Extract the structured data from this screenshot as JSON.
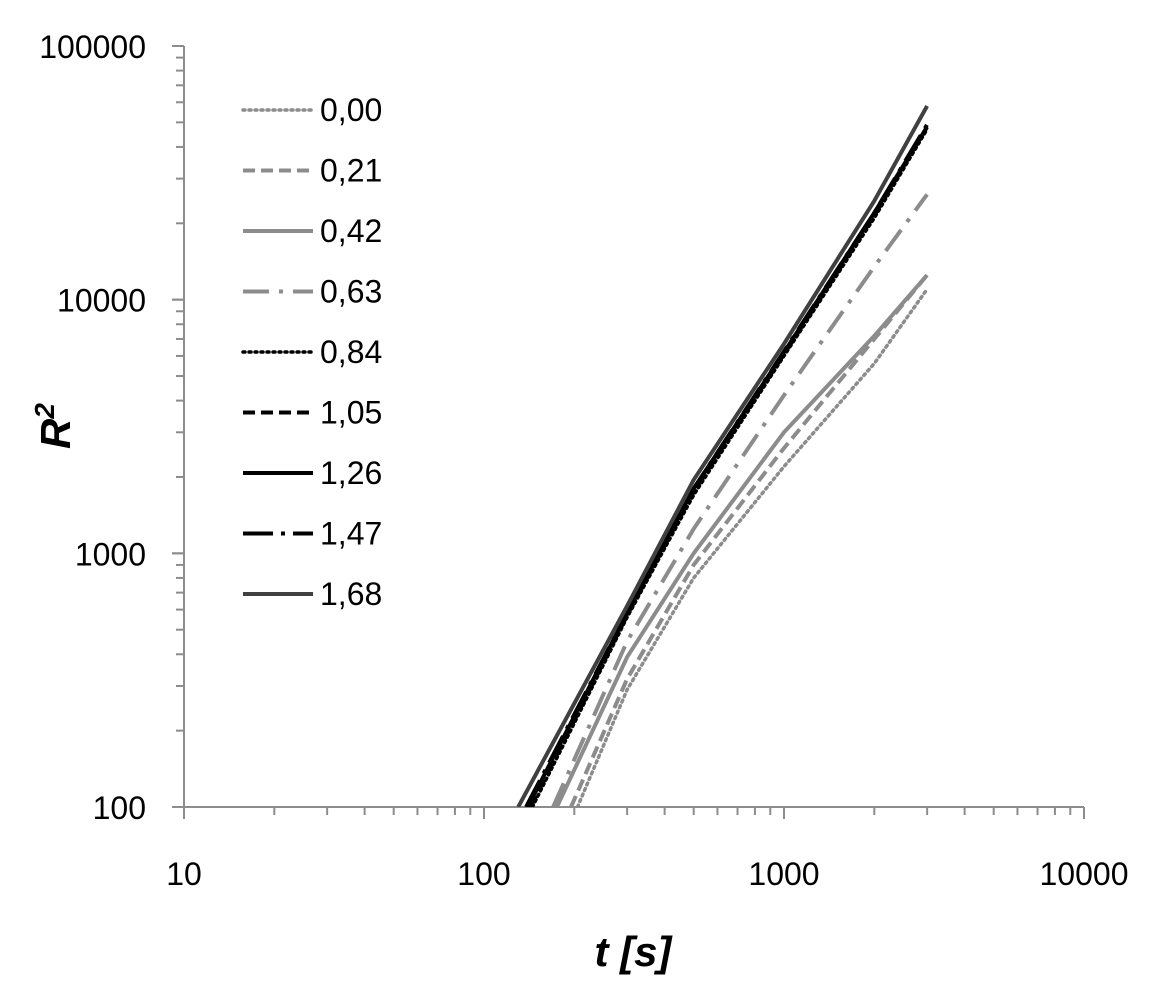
{
  "chart_data": {
    "type": "line",
    "x_scale": "log",
    "y_scale": "log",
    "xlim": [
      10,
      10000
    ],
    "ylim": [
      100,
      100000
    ],
    "xlabel": "t [s]",
    "ylabel": "R",
    "ylabel_superscript": "2",
    "x_ticks": [
      {
        "value": 10,
        "label": "10"
      },
      {
        "value": 100,
        "label": "100"
      },
      {
        "value": 1000,
        "label": "1000"
      },
      {
        "value": 10000,
        "label": "10000"
      }
    ],
    "y_ticks": [
      {
        "value": 100,
        "label": "100"
      },
      {
        "value": 1000,
        "label": "1000"
      },
      {
        "value": 10000,
        "label": "10000"
      },
      {
        "value": 100000,
        "label": "100000"
      }
    ],
    "grid": false,
    "legend_position": "top-left",
    "series": [
      {
        "name": "0,00",
        "color": "#8c8c8c",
        "style": "dotted",
        "points": [
          [
            205,
            100
          ],
          [
            300,
            290
          ],
          [
            500,
            800
          ],
          [
            1000,
            2200
          ],
          [
            2000,
            5600
          ],
          [
            3000,
            11000
          ]
        ]
      },
      {
        "name": "0,21",
        "color": "#8c8c8c",
        "style": "dashed",
        "points": [
          [
            195,
            100
          ],
          [
            300,
            320
          ],
          [
            500,
            900
          ],
          [
            1000,
            2600
          ],
          [
            2000,
            7000
          ],
          [
            3000,
            12500
          ]
        ]
      },
      {
        "name": "0,42",
        "color": "#8c8c8c",
        "style": "solid",
        "points": [
          [
            175,
            100
          ],
          [
            300,
            390
          ],
          [
            500,
            1000
          ],
          [
            1000,
            3000
          ],
          [
            2000,
            7200
          ],
          [
            3000,
            12500
          ]
        ]
      },
      {
        "name": "0,63",
        "color": "#8c8c8c",
        "style": "dashdot",
        "points": [
          [
            170,
            100
          ],
          [
            300,
            450
          ],
          [
            500,
            1250
          ],
          [
            1000,
            4200
          ],
          [
            2000,
            13500
          ],
          [
            3000,
            26000
          ]
        ]
      },
      {
        "name": "0,84",
        "color": "#000000",
        "style": "dotted",
        "points": [
          [
            145,
            100
          ],
          [
            300,
            560
          ],
          [
            500,
            1700
          ],
          [
            1000,
            6000
          ],
          [
            2000,
            21000
          ],
          [
            3000,
            47000
          ]
        ]
      },
      {
        "name": "1,05",
        "color": "#000000",
        "style": "dashed",
        "points": [
          [
            143,
            100
          ],
          [
            300,
            570
          ],
          [
            500,
            1750
          ],
          [
            1000,
            6100
          ],
          [
            2000,
            21500
          ],
          [
            3000,
            48000
          ]
        ]
      },
      {
        "name": "1,26",
        "color": "#000000",
        "style": "solid",
        "points": [
          [
            140,
            100
          ],
          [
            300,
            580
          ],
          [
            500,
            1800
          ],
          [
            1000,
            6200
          ],
          [
            2000,
            22000
          ],
          [
            3000,
            48000
          ]
        ]
      },
      {
        "name": "1,47",
        "color": "#000000",
        "style": "longdash",
        "points": [
          [
            138,
            100
          ],
          [
            300,
            580
          ],
          [
            500,
            1800
          ],
          [
            1000,
            6250
          ],
          [
            2000,
            22000
          ],
          [
            3000,
            49000
          ]
        ]
      },
      {
        "name": "1,68",
        "color": "#404040",
        "style": "solid",
        "points": [
          [
            130,
            100
          ],
          [
            300,
            620
          ],
          [
            500,
            1950
          ],
          [
            1000,
            6700
          ],
          [
            2000,
            24500
          ],
          [
            3000,
            58000
          ]
        ]
      }
    ]
  }
}
